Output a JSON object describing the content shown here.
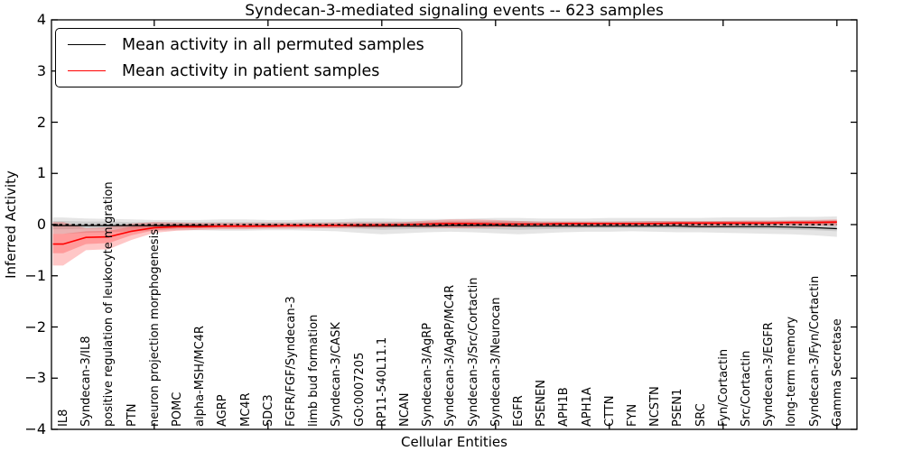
{
  "figure": {
    "kind": "matplotlib-line-plot",
    "background": "#ffffff",
    "accent_red": "#ff0000",
    "line_black": "#000000"
  },
  "chart_data": {
    "type": "line",
    "title": "Syndecan-3-mediated signaling events -- 623 samples",
    "xlabel": "Cellular Entities",
    "ylabel": "Inferred Activity",
    "ylim": [
      -4,
      4
    ],
    "yticks": [
      4,
      3,
      2,
      1,
      0,
      -1,
      -2,
      -3,
      -4
    ],
    "grid": false,
    "legend_position": "upper left",
    "zero_line": {
      "y": 0,
      "style": "dashed",
      "color": "#000000"
    },
    "categories": [
      "IL8",
      "Syndecan-3/IL8",
      "positive regulation of leukocyte migration",
      "PTN",
      "neuron projection morphogenesis",
      "POMC",
      "alpha-MSH/MC4R",
      "AGRP",
      "MC4R",
      "SDC3",
      "FGFR/FGF/Syndecan-3",
      "limb bud formation",
      "Syndecan-3/CASK",
      "GO:0007205",
      "RP11-540L11.1",
      "NCAN",
      "Syndecan-3/AgRP",
      "Syndecan-3/AgRP/MC4R",
      "Syndecan-3/Src/Cortactin",
      "Syndecan-3/Neurocan",
      "EGFR",
      "PSENEN",
      "APH1B",
      "APH1A",
      "CTTN",
      "FYN",
      "NCSTN",
      "PSEN1",
      "SRC",
      "Fyn/Cortactin",
      "Src/Cortactin",
      "Syndecan-3/EGFR",
      "long-term memory",
      "Syndecan-3/Fyn/Cortactin",
      "Gamma Secretase"
    ],
    "series": [
      {
        "name": "Mean activity in all permuted samples",
        "color": "#000000",
        "values": [
          -0.02,
          -0.02,
          -0.02,
          -0.02,
          -0.02,
          -0.02,
          -0.02,
          -0.03,
          -0.03,
          -0.02,
          -0.02,
          -0.02,
          -0.02,
          -0.03,
          -0.03,
          -0.03,
          -0.03,
          -0.02,
          -0.02,
          -0.02,
          -0.03,
          -0.03,
          -0.03,
          -0.03,
          -0.03,
          -0.03,
          -0.03,
          -0.03,
          -0.04,
          -0.04,
          -0.04,
          -0.04,
          -0.05,
          -0.06,
          -0.08
        ],
        "band_outer_low": [
          -0.18,
          -0.16,
          -0.15,
          -0.13,
          -0.12,
          -0.11,
          -0.11,
          -0.12,
          -0.12,
          -0.11,
          -0.11,
          -0.12,
          -0.13,
          -0.16,
          -0.19,
          -0.17,
          -0.15,
          -0.14,
          -0.15,
          -0.17,
          -0.19,
          -0.17,
          -0.15,
          -0.14,
          -0.14,
          -0.13,
          -0.14,
          -0.15,
          -0.15,
          -0.16,
          -0.17,
          -0.18,
          -0.19,
          -0.21,
          -0.24
        ],
        "band_outer_high": [
          0.14,
          0.12,
          0.11,
          0.1,
          0.09,
          0.09,
          0.09,
          0.1,
          0.1,
          0.09,
          0.09,
          0.1,
          0.1,
          0.12,
          0.12,
          0.11,
          0.11,
          0.11,
          0.12,
          0.13,
          0.13,
          0.12,
          0.12,
          0.12,
          0.13,
          0.13,
          0.13,
          0.13,
          0.13,
          0.14,
          0.14,
          0.14,
          0.15,
          0.15,
          0.16
        ],
        "band_inner_low": [
          -0.09,
          -0.08,
          -0.08,
          -0.07,
          -0.06,
          -0.06,
          -0.06,
          -0.06,
          -0.06,
          -0.06,
          -0.06,
          -0.06,
          -0.07,
          -0.08,
          -0.1,
          -0.09,
          -0.08,
          -0.07,
          -0.08,
          -0.09,
          -0.1,
          -0.09,
          -0.08,
          -0.07,
          -0.07,
          -0.07,
          -0.07,
          -0.08,
          -0.08,
          -0.08,
          -0.09,
          -0.09,
          -0.1,
          -0.11,
          -0.13
        ],
        "band_inner_high": [
          0.07,
          0.06,
          0.06,
          0.05,
          0.05,
          0.05,
          0.05,
          0.05,
          0.05,
          0.05,
          0.05,
          0.05,
          0.05,
          0.06,
          0.06,
          0.06,
          0.06,
          0.06,
          0.06,
          0.07,
          0.07,
          0.06,
          0.06,
          0.06,
          0.06,
          0.07,
          0.07,
          0.07,
          0.07,
          0.07,
          0.07,
          0.07,
          0.08,
          0.08,
          0.08
        ],
        "band_fill": "rgba(0,0,0,0.10)"
      },
      {
        "name": "Mean activity in patient samples",
        "color": "#ff0000",
        "values": [
          -0.38,
          -0.25,
          -0.24,
          -0.13,
          -0.06,
          -0.04,
          -0.04,
          -0.03,
          -0.03,
          -0.03,
          -0.02,
          -0.02,
          -0.02,
          -0.01,
          -0.01,
          0.0,
          0.01,
          0.02,
          0.02,
          0.01,
          0.01,
          0.01,
          0.02,
          0.02,
          0.02,
          0.02,
          0.02,
          0.03,
          0.03,
          0.03,
          0.03,
          0.03,
          0.04,
          0.04,
          0.05
        ],
        "band_outer_low": [
          -0.8,
          -0.5,
          -0.48,
          -0.3,
          -0.16,
          -0.12,
          -0.1,
          -0.09,
          -0.09,
          -0.08,
          -0.08,
          -0.07,
          -0.07,
          -0.06,
          -0.06,
          -0.05,
          -0.06,
          -0.07,
          -0.07,
          -0.06,
          -0.05,
          -0.04,
          -0.04,
          -0.04,
          -0.04,
          -0.04,
          -0.03,
          -0.03,
          -0.03,
          -0.03,
          -0.02,
          -0.02,
          -0.02,
          -0.02,
          -0.02
        ],
        "band_outer_high": [
          0.05,
          -0.07,
          -0.05,
          0.02,
          0.05,
          0.04,
          0.03,
          0.03,
          0.03,
          0.03,
          0.03,
          0.03,
          0.04,
          0.04,
          0.04,
          0.05,
          0.08,
          0.1,
          0.1,
          0.09,
          0.07,
          0.06,
          0.06,
          0.06,
          0.06,
          0.06,
          0.07,
          0.07,
          0.07,
          0.07,
          0.08,
          0.08,
          0.08,
          0.09,
          0.1
        ],
        "band_inner_low": [
          -0.56,
          -0.38,
          -0.36,
          -0.21,
          -0.11,
          -0.08,
          -0.07,
          -0.06,
          -0.06,
          -0.05,
          -0.05,
          -0.05,
          -0.04,
          -0.04,
          -0.03,
          -0.03,
          -0.03,
          -0.03,
          -0.03,
          -0.02,
          -0.02,
          -0.02,
          -0.01,
          -0.01,
          -0.01,
          -0.01,
          0.0,
          0.0,
          0.0,
          0.0,
          0.0,
          0.01,
          0.01,
          0.01,
          0.01
        ],
        "band_inner_high": [
          -0.18,
          -0.13,
          -0.12,
          -0.04,
          0.0,
          0.0,
          0.0,
          0.0,
          0.0,
          0.0,
          0.01,
          0.01,
          0.01,
          0.01,
          0.02,
          0.02,
          0.04,
          0.06,
          0.06,
          0.05,
          0.04,
          0.03,
          0.04,
          0.04,
          0.04,
          0.04,
          0.05,
          0.05,
          0.05,
          0.06,
          0.06,
          0.06,
          0.07,
          0.07,
          0.08
        ],
        "band_fill": "rgba(255,0,0,0.22)"
      }
    ]
  }
}
